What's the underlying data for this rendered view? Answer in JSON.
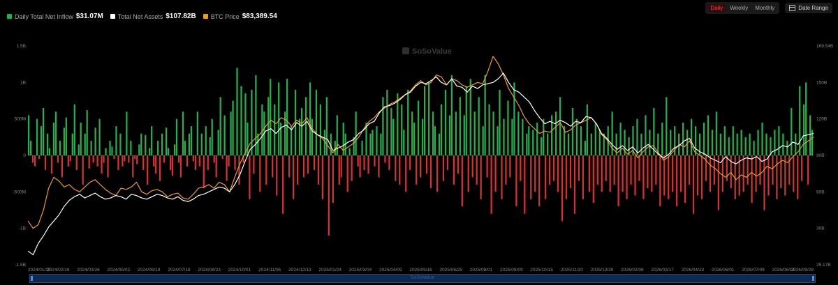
{
  "legend": [
    {
      "label": "Daily Total Net Inflow",
      "value": "$31.07M",
      "color": "#22b14c"
    },
    {
      "label": "Total Net Assets",
      "value": "$107.82B",
      "color": "#ffffff"
    },
    {
      "label": "BTC Price",
      "value": "$83,389.54",
      "color": "#f39c12"
    }
  ],
  "periods": [
    "Daily",
    "Weekly",
    "Monthly"
  ],
  "active_period": "Daily",
  "date_range_label": "Date Range",
  "watermark": "SoSoValue",
  "navigator_label": "SoSoValue",
  "chart_data": {
    "type": "bar+line",
    "x_ticks": [
      "2024/01/10",
      "2024/02/16",
      "2024/03/26",
      "2024/05/02",
      "2024/06/10",
      "2024/07/18",
      "2024/08/23",
      "2024/10/01",
      "2024/11/06",
      "2024/12/13",
      "2025/01/24",
      "2025/03/04",
      "2025/04/09",
      "2025/05/16",
      "2025/06/25",
      "2025/08/01",
      "2025/09/09",
      "2025/10/15",
      "2025/11/20",
      "2025/12/30",
      "2026/02/06",
      "2026/03/17",
      "2026/04/23",
      "2026/06/01",
      "2026/07/09",
      "2026/08/14",
      "2026/09/28"
    ],
    "y_left_ticks": [
      "1.5B",
      "1B",
      "500M",
      "0",
      "-500M",
      "-1B",
      "-1.5B"
    ],
    "y_left_values": [
      1500,
      1000,
      500,
      0,
      -500,
      -1000,
      -1500
    ],
    "y_left_unit": "M USD",
    "y_right_ticks": [
      "169.54B",
      "150B",
      "120B",
      "90B",
      "60B",
      "30B",
      "25.17B"
    ],
    "y_right_values": [
      169.54,
      150,
      120,
      90,
      60,
      30,
      25.17
    ],
    "y_right_unit": "B USD",
    "inflow_series": {
      "name": "Daily Total Net Inflow",
      "up_color": "#22b14c",
      "down_color": "#d93030",
      "values_M": [
        550,
        200,
        -100,
        -150,
        500,
        -50,
        400,
        650,
        -200,
        300,
        100,
        -250,
        450,
        600,
        -100,
        200,
        -300,
        380,
        520,
        -150,
        -80,
        300,
        700,
        -200,
        150,
        450,
        -400,
        300,
        620,
        -180,
        200,
        -100,
        380,
        -150,
        500,
        -250,
        -100,
        100,
        -300,
        200,
        120,
        -50,
        400,
        -200,
        300,
        -150,
        -80,
        600,
        -100,
        200,
        -300,
        -50,
        -120,
        150,
        300,
        -200,
        280,
        -400,
        100,
        400,
        -150,
        -250,
        200,
        -350,
        300,
        -100,
        380,
        100,
        -200,
        -280,
        150,
        500,
        -100,
        -300,
        600,
        200,
        -150,
        300,
        400,
        -80,
        -200,
        600,
        -150,
        300,
        -450,
        400,
        -200,
        250,
        500,
        -100,
        -300,
        350,
        800,
        -50,
        550,
        -350,
        -150,
        600,
        750,
        -200,
        1200,
        -400,
        950,
        -100,
        850,
        450,
        -600,
        900,
        -250,
        1100,
        300,
        -500,
        700,
        600,
        -400,
        800,
        1050,
        -300,
        700,
        -550,
        1000,
        450,
        -800,
        600,
        1050,
        -300,
        400,
        -600,
        900,
        -400,
        500,
        650,
        -300,
        800,
        -250,
        1000,
        500,
        -200,
        900,
        -400,
        700,
        -600,
        350,
        800,
        -1100,
        300,
        -650,
        200,
        550,
        -400,
        -300,
        450,
        300,
        -500,
        100,
        -350,
        250,
        600,
        -150,
        -300,
        200,
        -200,
        450,
        -250,
        300,
        350,
        -150,
        400,
        -300,
        300,
        800,
        -100,
        900,
        -200,
        650,
        500,
        -350,
        850,
        -400,
        700,
        350,
        -500,
        900,
        -200,
        600,
        450,
        -400,
        750,
        -300,
        500,
        950,
        -250,
        1000,
        -450,
        600,
        400,
        -500,
        300,
        700,
        -350,
        900,
        -200,
        550,
        1100,
        -400,
        600,
        -250,
        800,
        -700,
        550,
        950,
        -500,
        1050,
        -300,
        600,
        -400,
        800,
        -600,
        400,
        1100,
        -300,
        700,
        -800,
        600,
        -500,
        400,
        900,
        -600,
        500,
        -400,
        750,
        -300,
        500,
        1000,
        -700,
        600,
        -350,
        500,
        -800,
        300,
        400,
        -600,
        350,
        -500,
        450,
        -700,
        250,
        500,
        -600,
        300,
        -400,
        550,
        -350,
        600,
        -500,
        800,
        -900,
        400,
        -600,
        300,
        -450,
        650,
        -800,
        500,
        -350,
        400,
        -600,
        200,
        700,
        -500,
        300,
        -650,
        450,
        -400,
        350,
        -500,
        300,
        -350,
        400,
        -500,
        600,
        -400,
        300,
        -700,
        450,
        -500,
        350,
        -600,
        250,
        -400,
        400,
        -550,
        500,
        -350,
        300,
        -600,
        550,
        -450,
        350,
        -500,
        650,
        -400,
        300,
        -700,
        450,
        -550,
        800,
        -600,
        350,
        -500,
        400,
        -700,
        300,
        -500,
        450,
        -650,
        350,
        -400,
        500,
        -800,
        400,
        -550,
        300,
        -600,
        450,
        -350,
        550,
        -500,
        350,
        -400,
        600,
        -750,
        300,
        -500,
        400,
        -350,
        250,
        -450,
        400,
        -600,
        300,
        -550,
        350,
        -500,
        250,
        -400,
        300,
        -650,
        200,
        -500,
        350,
        -400,
        450,
        -750,
        300,
        -550,
        250,
        -400,
        350,
        -600,
        400,
        -450,
        300,
        -550,
        200,
        -400,
        650,
        -500,
        300,
        -600,
        950,
        -350,
        700,
        1000,
        -400,
        550,
        350
      ]
    },
    "net_assets_series": {
      "name": "Total Net Assets",
      "color": "#ffffff",
      "values_B": [
        27,
        26.5,
        28,
        29,
        31,
        36,
        41,
        48,
        53,
        56,
        58,
        55,
        57,
        59,
        56,
        54,
        55,
        57,
        56,
        54,
        58,
        57,
        55,
        54,
        56,
        58,
        57,
        55,
        54,
        56,
        53,
        52,
        54,
        57,
        58,
        60,
        62,
        64,
        63,
        60,
        66,
        74,
        85,
        95,
        99,
        104,
        110,
        112,
        108,
        113,
        115,
        111,
        117,
        114,
        118,
        110,
        107,
        105,
        103,
        94,
        96,
        98,
        101,
        103,
        108,
        111,
        116,
        118,
        125,
        130,
        131,
        133,
        136,
        140,
        142,
        147,
        150,
        149,
        151,
        153,
        150,
        148,
        152,
        147,
        146,
        142,
        147,
        145,
        148,
        149,
        150,
        152,
        155,
        150,
        144,
        142,
        138,
        134,
        127,
        121,
        116,
        118,
        116,
        119,
        117,
        114,
        118,
        117,
        122,
        121,
        116,
        108,
        104,
        99,
        95,
        98,
        94,
        97,
        92,
        96,
        99,
        95,
        91,
        88,
        91,
        96,
        98,
        102,
        104,
        96,
        93,
        91,
        88,
        86,
        84,
        89,
        85,
        83,
        86,
        88,
        87,
        89,
        85,
        87,
        93,
        95,
        98,
        97,
        101,
        99,
        106,
        107,
        108
      ]
    },
    "btc_price_series": {
      "name": "BTC Price",
      "color": "#f39c12",
      "values_B": [
        36,
        30,
        33,
        45,
        63,
        72,
        69,
        64,
        66,
        62,
        60,
        64,
        68,
        70,
        66,
        62,
        59,
        57,
        63,
        62,
        64,
        68,
        60,
        58,
        61,
        62,
        60,
        56,
        58,
        59,
        55,
        54,
        58,
        63,
        64,
        66,
        63,
        68,
        66,
        60,
        72,
        83,
        92,
        100,
        104,
        108,
        114,
        119,
        116,
        121,
        119,
        114,
        119,
        116,
        121,
        112,
        107,
        104,
        98,
        92,
        99,
        94,
        97,
        100,
        105,
        112,
        118,
        121,
        126,
        129,
        132,
        134,
        137,
        140,
        143,
        148,
        151,
        148,
        150,
        154,
        153,
        148,
        152,
        151,
        148,
        146,
        148,
        150,
        149,
        156,
        164,
        160,
        154,
        145,
        138,
        131,
        122,
        116,
        112,
        108,
        110,
        109,
        113,
        117,
        109,
        111,
        115,
        117,
        119,
        121,
        116,
        107,
        103,
        96,
        92,
        96,
        91,
        94,
        88,
        93,
        97,
        98,
        92,
        86,
        89,
        94,
        99,
        97,
        102,
        93,
        90,
        87,
        82,
        79,
        75,
        72,
        76,
        70,
        74,
        72,
        76,
        73,
        76,
        81,
        79,
        83,
        86,
        84,
        89,
        93,
        99,
        102,
        105
      ]
    }
  }
}
